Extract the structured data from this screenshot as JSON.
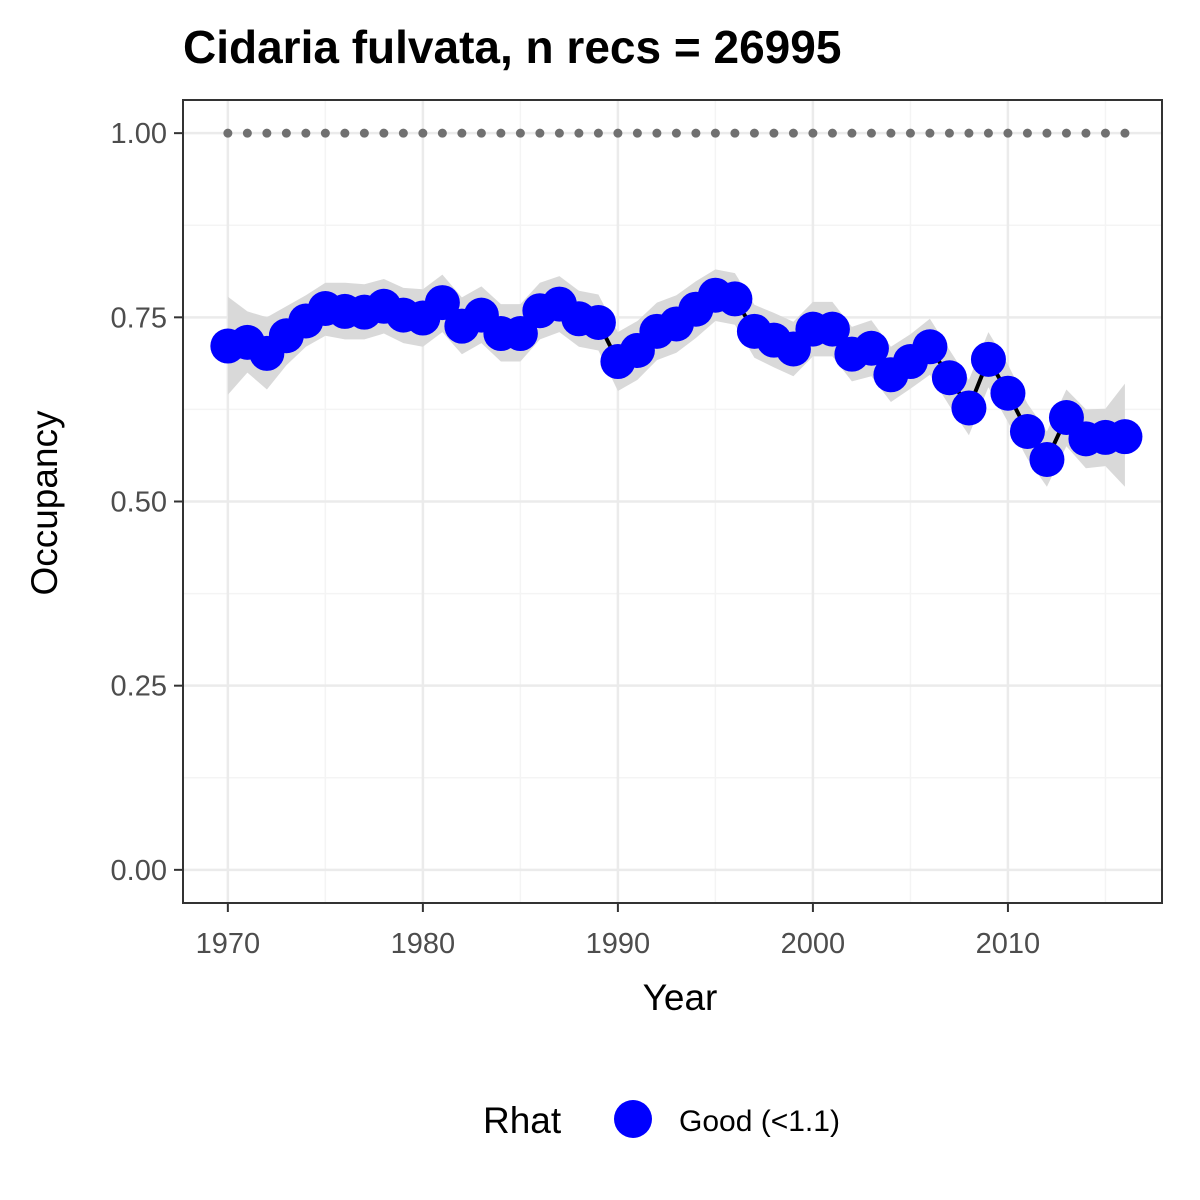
{
  "chart_data": {
    "type": "line",
    "title": "Cidaria fulvata, n recs = 26995",
    "xlabel": "Year",
    "ylabel": "Occupancy",
    "xlim": [
      1967.7,
      2017.9
    ],
    "ylim": [
      -0.045,
      1.045
    ],
    "x_ticks": [
      1970,
      1980,
      1990,
      2000,
      2010
    ],
    "x_tick_labels": [
      "1970",
      "1980",
      "1990",
      "2000",
      "2010"
    ],
    "y_ticks": [
      0,
      0.25,
      0.5,
      0.75,
      1.0
    ],
    "y_tick_labels": [
      "0.00",
      "0.25",
      "0.50",
      "0.75",
      "1.00"
    ],
    "grid": true,
    "legend": {
      "title": "Rhat",
      "position": "bottom",
      "entries": [
        {
          "label": "Good (<1.1)",
          "color": "#0000ff"
        }
      ]
    },
    "reference_line": {
      "y": 1.0,
      "style": "dotted",
      "color": "#707070"
    },
    "x": [
      1970,
      1971,
      1972,
      1973,
      1974,
      1975,
      1976,
      1977,
      1978,
      1979,
      1980,
      1981,
      1982,
      1983,
      1984,
      1985,
      1986,
      1987,
      1988,
      1989,
      1990,
      1991,
      1992,
      1993,
      1994,
      1995,
      1996,
      1997,
      1998,
      1999,
      2000,
      2001,
      2002,
      2003,
      2004,
      2005,
      2006,
      2007,
      2008,
      2009,
      2010,
      2011,
      2012,
      2013,
      2014,
      2015,
      2016
    ],
    "series": [
      {
        "name": "Good (<1.1)",
        "color": "#0000ff",
        "values": [
          0.711,
          0.716,
          0.701,
          0.725,
          0.745,
          0.762,
          0.758,
          0.757,
          0.765,
          0.753,
          0.749,
          0.77,
          0.738,
          0.753,
          0.728,
          0.728,
          0.759,
          0.768,
          0.748,
          0.743,
          0.69,
          0.705,
          0.731,
          0.741,
          0.761,
          0.78,
          0.775,
          0.731,
          0.719,
          0.707,
          0.734,
          0.734,
          0.7,
          0.708,
          0.672,
          0.69,
          0.71,
          0.668,
          0.627,
          0.693,
          0.647,
          0.595,
          0.557,
          0.614,
          0.585,
          0.587,
          0.588
        ],
        "lower": [
          0.645,
          0.675,
          0.652,
          0.685,
          0.71,
          0.725,
          0.72,
          0.72,
          0.728,
          0.715,
          0.71,
          0.73,
          0.7,
          0.715,
          0.69,
          0.69,
          0.72,
          0.73,
          0.71,
          0.705,
          0.65,
          0.665,
          0.692,
          0.702,
          0.722,
          0.745,
          0.74,
          0.695,
          0.682,
          0.67,
          0.697,
          0.697,
          0.663,
          0.67,
          0.635,
          0.653,
          0.672,
          0.63,
          0.59,
          0.655,
          0.608,
          0.558,
          0.52,
          0.575,
          0.545,
          0.548,
          0.52
        ],
        "upper": [
          0.778,
          0.758,
          0.75,
          0.765,
          0.78,
          0.797,
          0.797,
          0.795,
          0.802,
          0.79,
          0.788,
          0.808,
          0.777,
          0.792,
          0.768,
          0.768,
          0.797,
          0.806,
          0.786,
          0.781,
          0.73,
          0.745,
          0.77,
          0.78,
          0.799,
          0.815,
          0.81,
          0.767,
          0.756,
          0.744,
          0.771,
          0.771,
          0.737,
          0.746,
          0.71,
          0.727,
          0.748,
          0.706,
          0.665,
          0.73,
          0.686,
          0.633,
          0.595,
          0.652,
          0.625,
          0.626,
          0.66
        ]
      }
    ]
  },
  "colors": {
    "points": "#0000ff",
    "line": "#000000",
    "ribbon": "#d9d9d9",
    "grid_major": "#ebebeb",
    "grid_minor": "#f4f4f4",
    "panel_border": "#333333",
    "reference_line": "#707070"
  }
}
